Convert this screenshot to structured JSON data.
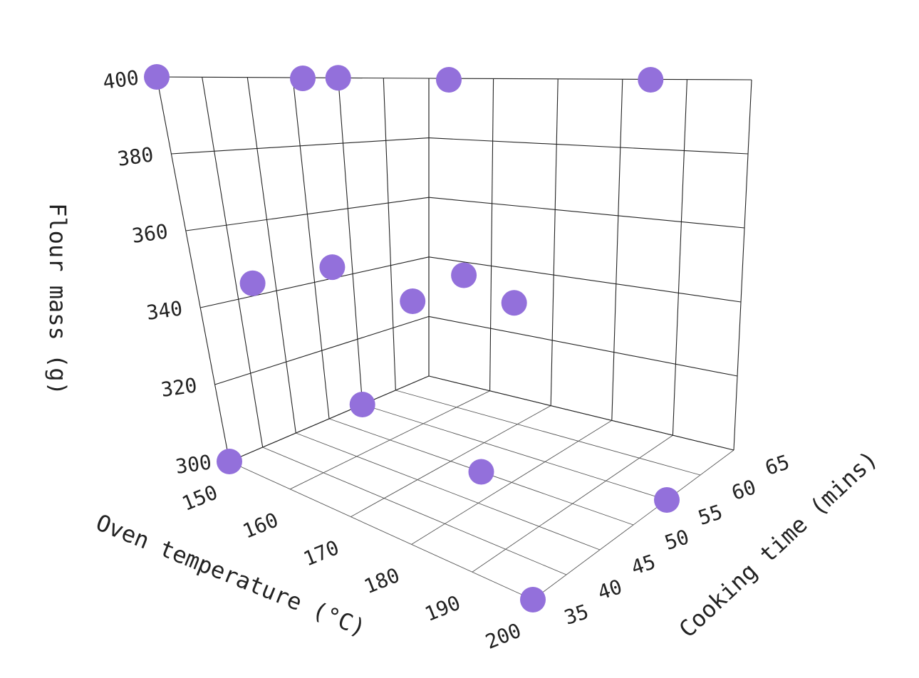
{
  "chart_data": {
    "type": "scatter",
    "title": "",
    "xlabel": "Oven temperature (°C)",
    "ylabel": "Cooking time (mins)",
    "zlabel": "Flour mass (g)",
    "x_ticks": [
      "150",
      "160",
      "170",
      "180",
      "190",
      "200"
    ],
    "y_ticks": [
      "35",
      "40",
      "45",
      "50",
      "55",
      "60",
      "65"
    ],
    "z_ticks": [
      "300",
      "320",
      "340",
      "360",
      "380",
      "400"
    ],
    "xlim": [
      150,
      200
    ],
    "ylim": [
      35,
      65
    ],
    "zlim": [
      300,
      400
    ],
    "grid": true,
    "marker_color": "#9370DB",
    "points": [
      {
        "x": 150,
        "y": 55,
        "z": 400
      },
      {
        "x": 150,
        "y": 35,
        "z": 400
      },
      {
        "x": 175,
        "y": 35,
        "z": 400
      },
      {
        "x": 200,
        "y": 35,
        "z": 400
      },
      {
        "x": 200,
        "y": 55,
        "z": 400
      },
      {
        "x": 160,
        "y": 45,
        "z": 350
      },
      {
        "x": 175,
        "y": 50,
        "z": 350
      },
      {
        "x": 190,
        "y": 45,
        "z": 350
      },
      {
        "x": 180,
        "y": 40,
        "z": 350
      },
      {
        "x": 160,
        "y": 35,
        "z": 350
      },
      {
        "x": 150,
        "y": 55,
        "z": 300
      },
      {
        "x": 150,
        "y": 35,
        "z": 300
      },
      {
        "x": 175,
        "y": 50,
        "z": 300
      },
      {
        "x": 200,
        "y": 35,
        "z": 300
      },
      {
        "x": 200,
        "y": 55,
        "z": 300
      }
    ]
  }
}
